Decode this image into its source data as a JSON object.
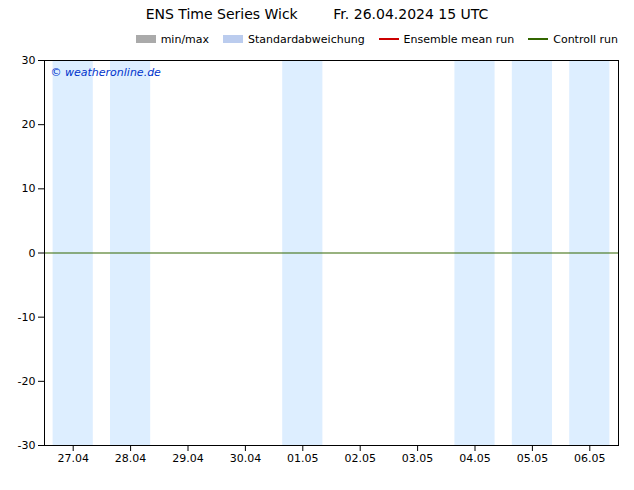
{
  "chart_data": {
    "type": "line",
    "title": "ENS Time Series Wick        Fr. 26.04.2024 15 UTC",
    "categories": [
      "27.04",
      "28.04",
      "29.04",
      "30.04",
      "01.05",
      "02.05",
      "03.05",
      "04.05",
      "05.05",
      "06.05"
    ],
    "series": [
      {
        "name": "min/max",
        "color": "#aaaaaa",
        "type": "area",
        "values": [
          null,
          null,
          null,
          null,
          null,
          null,
          null,
          null,
          null,
          null
        ]
      },
      {
        "name": "Standardabweichung",
        "color": "#bbccee",
        "type": "area",
        "values": [
          null,
          null,
          null,
          null,
          null,
          null,
          null,
          null,
          null,
          null
        ]
      },
      {
        "name": "Ensemble mean run",
        "color": "#cc0000",
        "type": "line",
        "values": [
          null,
          null,
          null,
          null,
          null,
          null,
          null,
          null,
          null,
          null
        ]
      },
      {
        "name": "Controll run",
        "color": "#336600",
        "type": "line",
        "values": [
          null,
          null,
          null,
          null,
          null,
          null,
          null,
          null,
          null,
          null
        ]
      }
    ],
    "shaded_categories": {
      "categories": [
        "27.04",
        "28.04",
        "01.05",
        "04.05",
        "05.05",
        "06.05"
      ],
      "color": "#ddeeff"
    },
    "zero_line": {
      "value": 0,
      "color": "#336600"
    },
    "annotations": [
      {
        "text": "© weatheronline.de",
        "color": "#0033cc"
      }
    ],
    "ylim": [
      -30,
      30
    ],
    "yticks": [
      -30,
      -20,
      -10,
      0,
      10,
      20,
      30
    ],
    "grid": false,
    "legend": "upper right"
  }
}
